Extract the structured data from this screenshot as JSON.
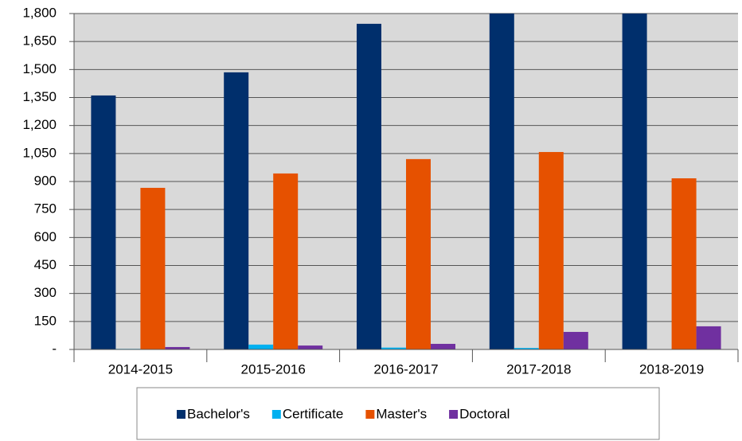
{
  "chart_data": {
    "type": "bar",
    "categories": [
      "2014-2015",
      "2015-2016",
      "2016-2017",
      "2017-2018",
      "2018-2019"
    ],
    "series": [
      {
        "name": "Bachelor's",
        "color": "#002f6c",
        "values": [
          1361,
          1485,
          1745,
          1800,
          1800
        ]
      },
      {
        "name": "Certificate",
        "color": "#00b0f0",
        "values": [
          3,
          26,
          10,
          8,
          2
        ]
      },
      {
        "name": "Master's",
        "color": "#e65100",
        "values": [
          866,
          943,
          1020,
          1058,
          917
        ]
      },
      {
        "name": "Doctoral",
        "color": "#7030a0",
        "values": [
          13,
          21,
          30,
          94,
          124
        ]
      }
    ],
    "ylim": [
      0,
      1800
    ],
    "yticks": [
      {
        "value": 0,
        "label": "-"
      },
      150,
      300,
      450,
      600,
      750,
      900,
      {
        "value": 1050,
        "label": "1,050"
      },
      {
        "value": 1200,
        "label": "1,200"
      },
      {
        "value": 1350,
        "label": "1,350"
      },
      {
        "value": 1500,
        "label": "1,500"
      },
      {
        "value": 1650,
        "label": "1,650"
      },
      {
        "value": 1800,
        "label": "1,800"
      }
    ],
    "grid": true,
    "legend": "bottom"
  }
}
